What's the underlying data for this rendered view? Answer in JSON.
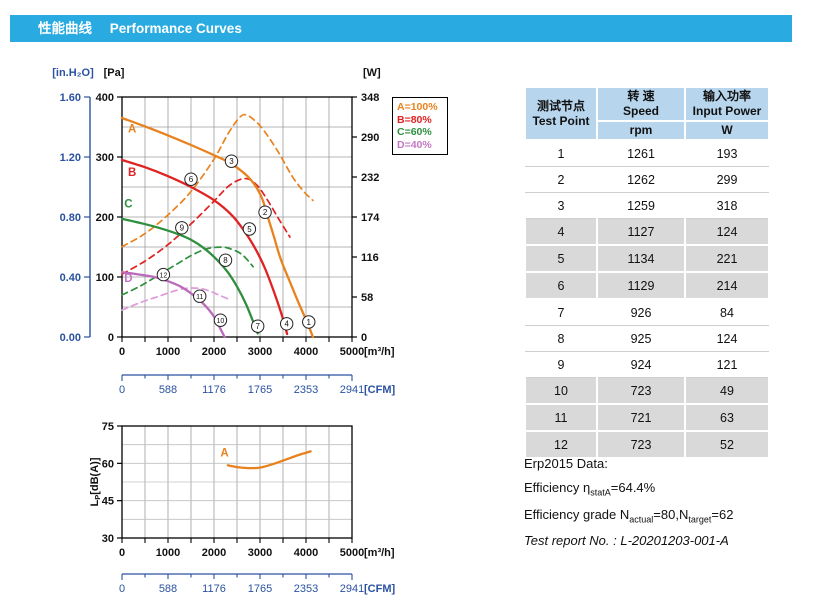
{
  "header": {
    "title_zh": "性能曲线",
    "title_en": "Performance Curves"
  },
  "colors": {
    "banner": "#29ABE2",
    "axis_blue": "#2A52A0",
    "grid": "#9C9C9C",
    "grid_light": "#C0C0C0",
    "curve_a": "#E8821E",
    "curve_b": "#E02222",
    "curve_c": "#2E8F3E",
    "curve_d": "#BA6ABA",
    "curve_d_power": "#DD9ADD",
    "table_header_bg": "#B7D6EE",
    "table_shaded_row": "#D9D9D9"
  },
  "legend": {
    "items": [
      {
        "label": "A=100%",
        "color": "#E8821E"
      },
      {
        "label": "B=80%",
        "color": "#E02222"
      },
      {
        "label": "C=60%",
        "color": "#2E8F3E"
      },
      {
        "label": "D=40%",
        "color": "#C478C4"
      }
    ]
  },
  "chart_data": [
    {
      "type": "line",
      "name": "pressure-and-power-curves",
      "x": {
        "unit": "[m³/h]",
        "ticks": [
          0,
          1000,
          2000,
          3000,
          4000,
          5000
        ],
        "range": [
          0,
          5000
        ],
        "grid_step": 500
      },
      "y_pressure_pa": {
        "unit": "[Pa]",
        "ticks": [
          400,
          300,
          200,
          100,
          0
        ],
        "range": [
          0,
          400
        ],
        "grid_step": 50
      },
      "y_pressure_inh2o": {
        "unit": "[in.H₂O]",
        "ticks": [
          "1.60",
          "1.20",
          "0.80",
          "0.40",
          "0.00"
        ]
      },
      "y_power_w": {
        "unit": "[W]",
        "ticks": [
          348,
          290,
          232,
          174,
          116,
          58,
          0
        ],
        "range": [
          0,
          348
        ]
      },
      "cfm": {
        "unit": "[CFM]",
        "ticks": [
          0,
          588,
          1176,
          1765,
          2353,
          2941
        ],
        "range": [
          0,
          2941
        ]
      },
      "series": [
        {
          "name": "A-power-W",
          "axis": "W",
          "dash": true,
          "color": "#E8821E",
          "points": [
            [
              0,
              131
            ],
            [
              500,
              150
            ],
            [
              1000,
              177
            ],
            [
              1500,
              211
            ],
            [
              2000,
              258
            ],
            [
              2300,
              294
            ],
            [
              2550,
              318
            ],
            [
              2700,
              322
            ],
            [
              2900,
              313
            ],
            [
              3100,
              298
            ],
            [
              3400,
              268
            ],
            [
              3700,
              233
            ],
            [
              3950,
              211
            ],
            [
              4150,
              198
            ]
          ]
        },
        {
          "name": "B-power-W",
          "axis": "W",
          "dash": true,
          "color": "#E02222",
          "points": [
            [
              0,
              91
            ],
            [
              500,
              110
            ],
            [
              1000,
              134
            ],
            [
              1500,
              164
            ],
            [
              2000,
              197
            ],
            [
              2300,
              218
            ],
            [
              2550,
              228
            ],
            [
              2750,
              229
            ],
            [
              2950,
              219
            ],
            [
              3150,
              200
            ],
            [
              3400,
              172
            ],
            [
              3650,
              145
            ]
          ]
        },
        {
          "name": "C-power-W",
          "axis": "W",
          "dash": true,
          "color": "#2E8F3E",
          "points": [
            [
              0,
              61
            ],
            [
              400,
              74
            ],
            [
              800,
              90
            ],
            [
              1200,
              106
            ],
            [
              1500,
              118
            ],
            [
              1800,
              127
            ],
            [
              2050,
              130
            ],
            [
              2300,
              129
            ],
            [
              2600,
              120
            ],
            [
              2850,
              102
            ]
          ]
        },
        {
          "name": "D-power-W",
          "axis": "W",
          "dash": true,
          "color": "#DD9ADD",
          "points": [
            [
              0,
              39
            ],
            [
              400,
              50
            ],
            [
              800,
              59
            ],
            [
              1200,
              68
            ],
            [
              1500,
              71
            ],
            [
              1800,
              69
            ],
            [
              2100,
              61
            ],
            [
              2350,
              54
            ]
          ]
        },
        {
          "name": "A-pressure-Pa",
          "axis": "Pa",
          "dash": false,
          "color": "#E8821E",
          "points": [
            [
              0,
              365
            ],
            [
              500,
              351
            ],
            [
              1000,
              336
            ],
            [
              1500,
              320
            ],
            [
              2000,
              303
            ],
            [
              2350,
              290
            ],
            [
              2700,
              270
            ],
            [
              2900,
              252
            ],
            [
              3050,
              230
            ],
            [
              3150,
              205
            ],
            [
              3300,
              168
            ],
            [
              3450,
              130
            ],
            [
              3650,
              92
            ],
            [
              3850,
              55
            ],
            [
              4050,
              20
            ],
            [
              4150,
              0
            ]
          ]
        },
        {
          "name": "B-pressure-Pa",
          "axis": "Pa",
          "dash": false,
          "color": "#E02222",
          "points": [
            [
              0,
              295
            ],
            [
              500,
              283
            ],
            [
              1000,
              268
            ],
            [
              1500,
              250
            ],
            [
              2000,
              228
            ],
            [
              2400,
              202
            ],
            [
              2700,
              172
            ],
            [
              2900,
              147
            ],
            [
              3100,
              116
            ],
            [
              3300,
              76
            ],
            [
              3480,
              35
            ],
            [
              3590,
              5
            ]
          ]
        },
        {
          "name": "C-pressure-Pa",
          "axis": "Pa",
          "dash": false,
          "color": "#2E8F3E",
          "points": [
            [
              0,
              197
            ],
            [
              400,
              190
            ],
            [
              800,
              182
            ],
            [
              1200,
              172
            ],
            [
              1500,
              162
            ],
            [
              1800,
              147
            ],
            [
              2100,
              126
            ],
            [
              2300,
              108
            ],
            [
              2500,
              84
            ],
            [
              2700,
              54
            ],
            [
              2870,
              22
            ],
            [
              2950,
              6
            ]
          ]
        },
        {
          "name": "D-pressure-Pa",
          "axis": "Pa",
          "dash": false,
          "color": "#BA6ABA",
          "points": [
            [
              0,
              108
            ],
            [
              300,
              105
            ],
            [
              700,
              100
            ],
            [
              1000,
              93
            ],
            [
              1300,
              83
            ],
            [
              1600,
              67
            ],
            [
              1800,
              53
            ],
            [
              2000,
              34
            ],
            [
              2150,
              12
            ],
            [
              2230,
              0
            ]
          ]
        }
      ],
      "curve_labels": [
        {
          "text": "A",
          "x": 220,
          "y": 341,
          "color": "#E8821E"
        },
        {
          "text": "B",
          "x": 220,
          "y": 268,
          "color": "#E02222"
        },
        {
          "text": "C",
          "x": 140,
          "y": 216,
          "color": "#2E8F3E"
        },
        {
          "text": "D",
          "x": 140,
          "y": 92,
          "color": "#C478C4"
        }
      ],
      "test_point_markers": [
        {
          "n": "1",
          "x": 4060,
          "y": 25
        },
        {
          "n": "2",
          "x": 3110,
          "y": 208
        },
        {
          "n": "3",
          "x": 2380,
          "y": 293
        },
        {
          "n": "4",
          "x": 3580,
          "y": 22
        },
        {
          "n": "5",
          "x": 2770,
          "y": 180
        },
        {
          "n": "6",
          "x": 1500,
          "y": 263
        },
        {
          "n": "7",
          "x": 2950,
          "y": 18
        },
        {
          "n": "8",
          "x": 2250,
          "y": 128
        },
        {
          "n": "9",
          "x": 1300,
          "y": 182
        },
        {
          "n": "10",
          "x": 2140,
          "y": 28
        },
        {
          "n": "11",
          "x": 1690,
          "y": 68
        },
        {
          "n": "12",
          "x": 900,
          "y": 104
        }
      ]
    },
    {
      "type": "line",
      "name": "noise-curve",
      "x": {
        "unit": "[m³/h]",
        "ticks": [
          0,
          1000,
          2000,
          3000,
          4000,
          5000
        ],
        "range": [
          0,
          5000
        ],
        "grid_step": 500
      },
      "y": {
        "label_main": "L",
        "label_sub": "P",
        "label_rest": "[dB(A)]",
        "ticks": [
          75,
          60,
          45,
          30
        ],
        "range": [
          30,
          75
        ],
        "grid_step": 7.5
      },
      "cfm": {
        "unit": "[CFM]",
        "ticks": [
          0,
          588,
          1176,
          1765,
          2353,
          2941
        ],
        "range": [
          0,
          2941
        ]
      },
      "series": [
        {
          "name": "A-noise-dBA",
          "axis": "dB",
          "dash": false,
          "color": "#E8821E",
          "points": [
            [
              2300,
              59.2
            ],
            [
              2500,
              58.5
            ],
            [
              2750,
              58.1
            ],
            [
              3000,
              58.3
            ],
            [
              3300,
              59.8
            ],
            [
              3600,
              61.8
            ],
            [
              3850,
              63.4
            ],
            [
              4100,
              64.8
            ]
          ]
        }
      ],
      "curve_labels": [
        {
          "text": "A",
          "x": 2230,
          "y": 62.8,
          "color": "#E8821E"
        }
      ]
    }
  ],
  "table": {
    "col1_zh": "测试节点",
    "col1_en": "Test Point",
    "col2_zh": "转 速",
    "col2_en": "Speed",
    "col2_unit": "rpm",
    "col3_zh": "输入功率",
    "col3_en": "Input Power",
    "col3_unit": "W",
    "rows": [
      {
        "point": "1",
        "rpm": "1261",
        "w": "193",
        "shaded": false
      },
      {
        "point": "2",
        "rpm": "1262",
        "w": "299",
        "shaded": false
      },
      {
        "point": "3",
        "rpm": "1259",
        "w": "318",
        "shaded": false
      },
      {
        "point": "4",
        "rpm": "1127",
        "w": "124",
        "shaded": true
      },
      {
        "point": "5",
        "rpm": "1134",
        "w": "221",
        "shaded": true
      },
      {
        "point": "6",
        "rpm": "1129",
        "w": "214",
        "shaded": true
      },
      {
        "point": "7",
        "rpm": "926",
        "w": "84",
        "shaded": false
      },
      {
        "point": "8",
        "rpm": "925",
        "w": "124",
        "shaded": false
      },
      {
        "point": "9",
        "rpm": "924",
        "w": "121",
        "shaded": false
      },
      {
        "point": "10",
        "rpm": "723",
        "w": "49",
        "shaded": true
      },
      {
        "point": "11",
        "rpm": "721",
        "w": "63",
        "shaded": true
      },
      {
        "point": "12",
        "rpm": "723",
        "w": "52",
        "shaded": true
      }
    ]
  },
  "erp": {
    "title": "Erp2015  Data:",
    "eff_pre": "Efficiency η",
    "eff_sub": "statA",
    "eff_post": "=64.4%",
    "grade_pre": "Efficiency grade N",
    "grade_sub1": "actual",
    "grade_mid": "=80,N",
    "grade_sub2": "target",
    "grade_post": "=62",
    "report": "Test report No.  : L-20201203-001-A"
  }
}
